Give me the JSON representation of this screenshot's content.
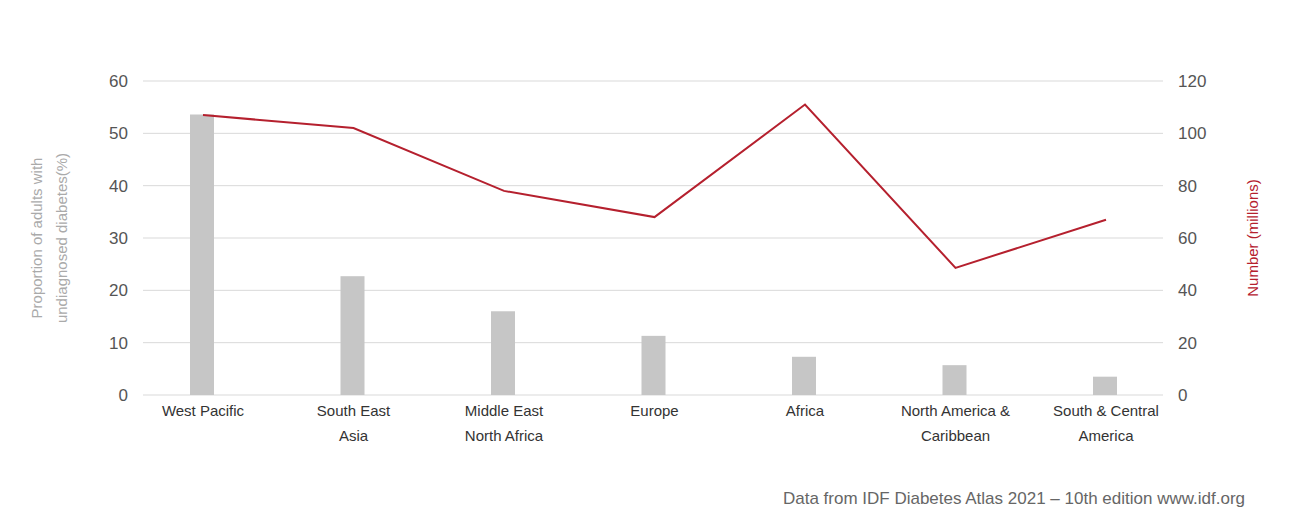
{
  "chart_data": {
    "type": "bar",
    "categories": [
      "West Pacific",
      "South East\nAsia",
      "Middle East\nNorth Africa",
      "Europe",
      "Africa",
      "North America &\nCaribbean",
      "South & Central\nAmerica"
    ],
    "series": [
      {
        "type": "bar",
        "color": "#c6c6c6",
        "values": [
          53.6,
          22.7,
          16,
          11.3,
          7.3,
          5.7,
          3.5
        ]
      },
      {
        "type": "line",
        "axis": "y2",
        "color": "#b5202e",
        "values": [
          107,
          102,
          78,
          68,
          111,
          48.6,
          67
        ]
      }
    ],
    "ylabel": "Proportion of adults with\nundiagnosed diabetes(%)",
    "y2label": "Number (millions)",
    "ylim": [
      0,
      60
    ],
    "yticks": [
      0,
      10,
      20,
      30,
      40,
      50,
      60
    ],
    "y2lim": [
      0,
      120
    ],
    "y2ticks": [
      0,
      20,
      40,
      60,
      80,
      100,
      120
    ],
    "grid": true,
    "source": "Data from IDF Diabetes Atlas 2021 – 10th edition www.idf.org"
  }
}
